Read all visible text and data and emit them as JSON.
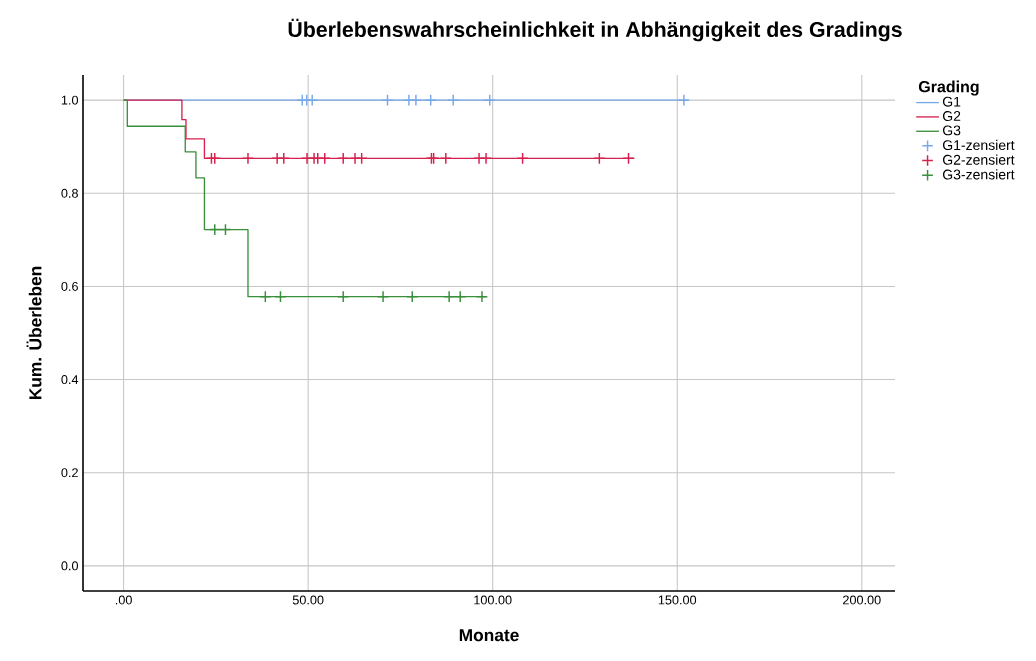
{
  "chart_data": {
    "type": "step",
    "title": "Überlebenswahrscheinlichkeit in Abhängigkeit des Gradings",
    "xlabel": "Monate",
    "ylabel": "Kum. Überleben",
    "legend_title": "Grading",
    "legend": "top right",
    "grid": true,
    "xlim": [
      -11,
      209
    ],
    "ylim": [
      -0.054,
      1.054
    ],
    "xticks": [
      {
        "value": 0,
        "label": ".00"
      },
      {
        "value": 50,
        "label": "50.00"
      },
      {
        "value": 100,
        "label": "100.00"
      },
      {
        "value": 150,
        "label": "150.00"
      },
      {
        "value": 200,
        "label": "200.00"
      }
    ],
    "yticks": [
      {
        "value": 0,
        "label": "0.0"
      },
      {
        "value": 0.2,
        "label": "0.2"
      },
      {
        "value": 0.4,
        "label": "0.4"
      },
      {
        "value": 0.6,
        "label": "0.6"
      },
      {
        "value": 0.8,
        "label": "0.8"
      },
      {
        "value": 1,
        "label": "1.0"
      }
    ],
    "series": [
      {
        "name": "G1",
        "marker": "none",
        "color": "#79aae8",
        "x": [
          0,
          152.8
        ],
        "values": [
          1,
          1
        ]
      },
      {
        "name": "G2",
        "marker": "none",
        "color": "#d6204d",
        "x": [
          0,
          15.8,
          16.9,
          21.9,
          138.4
        ],
        "values": [
          1,
          0.958,
          0.917,
          0.875,
          0.875
        ]
      },
      {
        "name": "G3",
        "marker": "none",
        "color": "#3a8f3a",
        "x": [
          0,
          1,
          16.7,
          19.6,
          21.9,
          33.7,
          98
        ],
        "values": [
          1,
          0.944,
          0.889,
          0.833,
          0.722,
          0.578,
          0.578
        ]
      },
      {
        "name": "G1-zensiert",
        "type": "scatter",
        "marker": "cross",
        "color": "#79aae8",
        "x": [
          48.4,
          49.6,
          51.1,
          71.5,
          77.3,
          79.2,
          83.2,
          89.3,
          99.2,
          151.8
        ],
        "values": [
          1,
          1,
          1,
          1,
          1,
          1,
          1,
          1,
          1,
          1
        ]
      },
      {
        "name": "G2-zensiert",
        "type": "scatter",
        "marker": "cross",
        "color": "#d6204d",
        "x": [
          23.8,
          24.7,
          33.7,
          41.6,
          43.4,
          49.7,
          51.6,
          52.6,
          54.5,
          59.5,
          62.7,
          64.5,
          83.4,
          84.0,
          87.3,
          96.3,
          98.2,
          108.1,
          128.9,
          136.8
        ],
        "values": [
          0.875,
          0.875,
          0.875,
          0.875,
          0.875,
          0.875,
          0.875,
          0.875,
          0.875,
          0.875,
          0.875,
          0.875,
          0.875,
          0.875,
          0.875,
          0.875,
          0.875,
          0.875,
          0.875,
          0.875
        ]
      },
      {
        "name": "G3-zensiert",
        "type": "scatter",
        "marker": "cross",
        "color": "#3a8f3a",
        "x": [
          24.7,
          27.6,
          38.4,
          42.5,
          59.5,
          70.3,
          78.2,
          88.2,
          91.2,
          97.1
        ],
        "values": [
          0.722,
          0.722,
          0.578,
          0.578,
          0.578,
          0.578,
          0.578,
          0.578,
          0.578,
          0.578
        ]
      }
    ]
  }
}
